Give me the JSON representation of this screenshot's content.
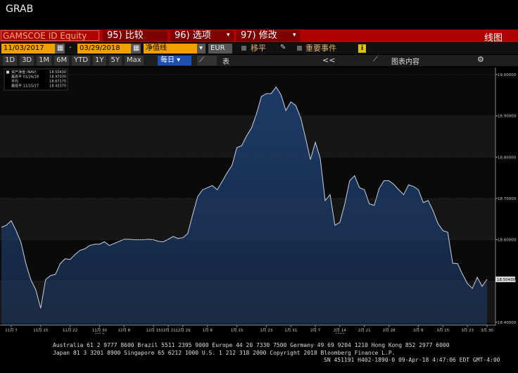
{
  "header": {
    "title": "GRAB"
  },
  "toolbar1": {
    "ticker": "GAMSCOE ID Equity",
    "buttons": [
      "95) 比较",
      "96) 选项",
      "97) 修改"
    ],
    "right": "线图"
  },
  "toolbar2": {
    "start_date": "11/03/2017",
    "dash": "-",
    "end_date": "03/29/2018",
    "field": "净值线",
    "currency": "EUR",
    "check1": "移平",
    "check2": "重要事件",
    "info": "i"
  },
  "toolbar3": {
    "periods": [
      "1D",
      "3D",
      "1M",
      "6M",
      "YTD",
      "1Y",
      "5Y",
      "Max"
    ],
    "frequency": "每日",
    "table": "表",
    "back": "<<",
    "chart_content": "图表内容"
  },
  "chart_data": {
    "type": "area",
    "categories": [
      null,
      null,
      "11月 7",
      null,
      null,
      null,
      null,
      null,
      "11月 15",
      null,
      null,
      null,
      null,
      null,
      "11月 22",
      null,
      null,
      null,
      null,
      null,
      "11月 30",
      null,
      null,
      null,
      null,
      "12月 8",
      null,
      null,
      null,
      null,
      null,
      "12月 15",
      null,
      null,
      "12月 21",
      null,
      null,
      "12月 29",
      null,
      null,
      null,
      null,
      "1月 8",
      null,
      null,
      null,
      null,
      null,
      "1月 15",
      null,
      null,
      null,
      null,
      null,
      "1月 23",
      null,
      null,
      null,
      null,
      "1月 31",
      null,
      null,
      null,
      null,
      "2月 7",
      null,
      null,
      null,
      null,
      "2月 14",
      null,
      null,
      null,
      null,
      "2月 21",
      null,
      null,
      null,
      null,
      "2月 28",
      null,
      null,
      null,
      null,
      null,
      "3月 8",
      null,
      null,
      null,
      null,
      "3月 15",
      null,
      null,
      null,
      null,
      "3月 23",
      null,
      null,
      null,
      "3月 30"
    ],
    "year_labels": [
      null,
      null,
      null,
      null,
      null,
      null,
      null,
      null,
      null,
      null,
      null,
      null,
      null,
      null,
      null,
      null,
      null,
      null,
      null,
      null,
      "2017",
      null,
      null,
      null,
      null,
      null,
      null,
      null,
      null,
      null,
      null,
      null,
      null,
      null,
      null,
      null,
      null,
      null,
      null,
      null,
      null,
      null,
      null,
      null,
      null,
      null,
      null,
      null,
      null,
      null,
      null,
      null,
      null,
      null,
      null,
      null,
      null,
      null,
      null,
      null,
      null,
      null,
      null,
      null,
      null,
      null,
      null,
      null,
      null,
      "2018",
      null,
      null,
      null,
      null,
      null,
      null,
      null,
      null,
      null,
      null,
      null,
      null,
      null,
      null,
      null,
      null,
      null,
      null,
      null,
      null,
      null,
      null,
      null,
      null,
      null,
      null,
      null,
      null,
      null,
      null
    ],
    "series": [
      {
        "name": "资产净值 (NAV)",
        "color": "#c8d2e6",
        "fill": "#1c3a66",
        "current_label": "18.50430",
        "values": [
          18.63,
          18.635,
          18.646,
          18.622,
          18.593,
          18.542,
          18.503,
          18.479,
          18.434,
          18.503,
          18.513,
          18.516,
          18.542,
          18.554,
          18.552,
          18.564,
          18.574,
          18.578,
          18.586,
          18.589,
          18.589,
          18.595,
          18.586,
          18.591,
          18.596,
          18.601,
          18.601,
          18.6,
          18.6,
          18.6,
          18.601,
          18.6,
          18.596,
          18.595,
          18.601,
          18.608,
          18.603,
          18.605,
          18.615,
          18.661,
          18.704,
          18.721,
          18.726,
          18.731,
          18.721,
          18.741,
          18.762,
          18.78,
          18.823,
          18.828,
          18.852,
          18.871,
          18.905,
          18.947,
          18.954,
          18.954,
          18.97,
          18.951,
          18.913,
          18.934,
          18.925,
          18.896,
          18.847,
          18.794,
          18.836,
          18.797,
          18.695,
          18.709,
          18.635,
          18.642,
          18.687,
          18.743,
          18.755,
          18.726,
          18.721,
          18.687,
          18.683,
          18.724,
          18.743,
          18.743,
          18.734,
          18.721,
          18.709,
          18.733,
          18.729,
          18.721,
          18.69,
          18.695,
          18.67,
          18.639,
          18.622,
          18.618,
          18.543,
          18.542,
          18.516,
          18.494,
          18.482,
          18.509,
          18.487,
          18.504
        ]
      }
    ],
    "legend_stats": [
      {
        "label": "最高平 01/26/18",
        "value": "18.97030"
      },
      {
        "label": "平均",
        "value": "18.67175"
      },
      {
        "label": "最低平 11/15/17",
        "value": "18.43370"
      }
    ],
    "ylim": [
      18.393,
      19.017
    ],
    "yticks": [
      {
        "value": 18.4,
        "label": "18.40000"
      },
      {
        "value": 18.5,
        "label": "18.50000"
      },
      {
        "value": 18.6,
        "label": "18.60000"
      },
      {
        "value": 18.7,
        "label": "18.70000"
      },
      {
        "value": 18.8,
        "label": "18.80000"
      },
      {
        "value": 18.9,
        "label": "18.90000"
      },
      {
        "value": 19.0,
        "label": "19.00000"
      }
    ],
    "grid": true
  },
  "footer": {
    "lines": [
      "Australia 61 2 9777 8600 Brazil 5511 2395 9000 Europe 44 20 7330 7500 Germany 49 69 9204 1210 Hong Kong 852 2977 6000",
      "Japan 81 3 3201 8900        Singapore 65 6212 1000        U.S. 1 212 318 2000        Copyright 2018 Bloomberg Finance L.P.",
      "SN 451191 H402-1890-0 09-Apr-18  4:47:06 EDT  GMT-4:00"
    ]
  }
}
